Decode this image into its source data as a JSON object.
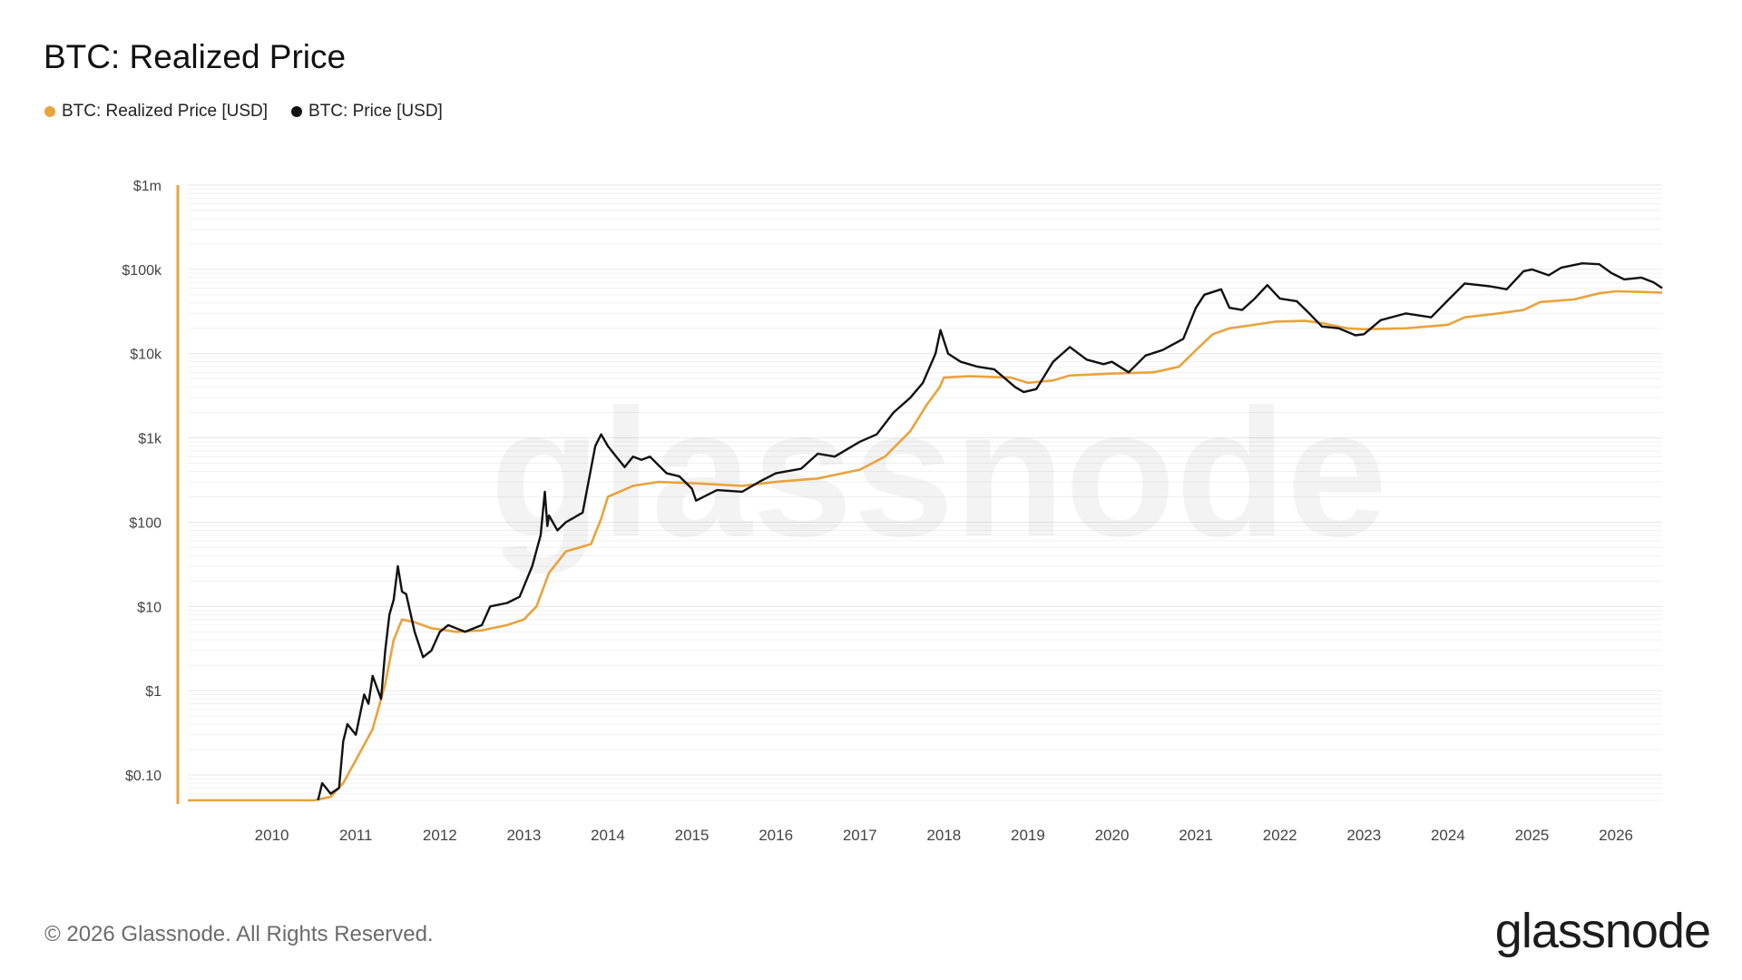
{
  "chart_data": {
    "type": "line",
    "title": "BTC: Realized Price",
    "y_scale": "log",
    "ylim": [
      0.05,
      1000000
    ],
    "y_ticks": [
      "$0.10",
      "$1",
      "$10",
      "$100",
      "$1k",
      "$10k",
      "$100k",
      "$1m"
    ],
    "y_tick_values": [
      0.1,
      1,
      10,
      100,
      1000,
      10000,
      100000,
      1000000
    ],
    "xlim": [
      2009.0,
      2026.55
    ],
    "x_ticks": [
      "2010",
      "2011",
      "2012",
      "2013",
      "2014",
      "2015",
      "2016",
      "2017",
      "2018",
      "2019",
      "2020",
      "2021",
      "2022",
      "2023",
      "2024",
      "2025",
      "2026"
    ],
    "grid": true,
    "legend_position": "top-left",
    "series": [
      {
        "name": "BTC: Realized Price [USD]",
        "color": "#e8a33d",
        "x": [
          2009.0,
          2010.5,
          2010.7,
          2010.85,
          2011.0,
          2011.2,
          2011.35,
          2011.45,
          2011.55,
          2011.7,
          2011.9,
          2012.2,
          2012.5,
          2012.8,
          2013.0,
          2013.15,
          2013.3,
          2013.5,
          2013.8,
          2013.92,
          2014.0,
          2014.3,
          2014.6,
          2015.0,
          2015.3,
          2015.6,
          2016.0,
          2016.5,
          2017.0,
          2017.3,
          2017.6,
          2017.8,
          2017.95,
          2018.0,
          2018.3,
          2018.8,
          2019.0,
          2019.3,
          2019.5,
          2020.0,
          2020.5,
          2020.8,
          2021.0,
          2021.2,
          2021.4,
          2021.7,
          2021.95,
          2022.3,
          2022.5,
          2022.8,
          2023.0,
          2023.5,
          2024.0,
          2024.2,
          2024.6,
          2024.9,
          2025.1,
          2025.5,
          2025.8,
          2026.0,
          2026.3,
          2026.55
        ],
        "y": [
          0.05,
          0.05,
          0.055,
          0.08,
          0.15,
          0.35,
          1.2,
          4.0,
          7.0,
          6.5,
          5.5,
          5.0,
          5.2,
          6.0,
          7.0,
          10,
          25,
          45,
          55,
          110,
          200,
          270,
          300,
          290,
          280,
          270,
          300,
          330,
          420,
          600,
          1200,
          2500,
          4000,
          5200,
          5400,
          5200,
          4500,
          4800,
          5500,
          5800,
          6000,
          7000,
          11000,
          17000,
          20000,
          22000,
          24000,
          24500,
          23000,
          20000,
          19500,
          20000,
          22000,
          27000,
          30000,
          33000,
          41000,
          44000,
          52000,
          55000,
          54000,
          53000
        ]
      },
      {
        "name": "BTC: Price [USD]",
        "color": "#111111",
        "x": [
          2010.55,
          2010.6,
          2010.7,
          2010.8,
          2010.85,
          2010.9,
          2011.0,
          2011.1,
          2011.15,
          2011.2,
          2011.3,
          2011.35,
          2011.4,
          2011.45,
          2011.5,
          2011.55,
          2011.6,
          2011.7,
          2011.8,
          2011.9,
          2012.0,
          2012.1,
          2012.3,
          2012.5,
          2012.6,
          2012.8,
          2012.95,
          2013.1,
          2013.2,
          2013.25,
          2013.28,
          2013.3,
          2013.4,
          2013.5,
          2013.7,
          2013.85,
          2013.92,
          2014.0,
          2014.1,
          2014.2,
          2014.3,
          2014.4,
          2014.5,
          2014.7,
          2014.85,
          2015.0,
          2015.05,
          2015.3,
          2015.6,
          2015.8,
          2016.0,
          2016.3,
          2016.5,
          2016.7,
          2017.0,
          2017.2,
          2017.4,
          2017.6,
          2017.75,
          2017.9,
          2017.96,
          2018.05,
          2018.2,
          2018.4,
          2018.6,
          2018.85,
          2018.95,
          2019.1,
          2019.3,
          2019.5,
          2019.7,
          2019.9,
          2020.0,
          2020.2,
          2020.4,
          2020.6,
          2020.85,
          2021.0,
          2021.1,
          2021.3,
          2021.4,
          2021.55,
          2021.7,
          2021.85,
          2022.0,
          2022.2,
          2022.35,
          2022.5,
          2022.7,
          2022.9,
          2023.0,
          2023.2,
          2023.5,
          2023.8,
          2024.0,
          2024.2,
          2024.5,
          2024.7,
          2024.9,
          2025.0,
          2025.2,
          2025.35,
          2025.6,
          2025.8,
          2025.95,
          2026.1,
          2026.3,
          2026.45,
          2026.55
        ],
        "y": [
          0.05,
          0.08,
          0.06,
          0.07,
          0.25,
          0.4,
          0.3,
          0.9,
          0.7,
          1.5,
          0.8,
          3,
          8,
          12,
          30,
          15,
          14,
          5,
          2.5,
          3,
          5,
          6,
          5,
          6,
          10,
          11,
          13,
          30,
          70,
          230,
          90,
          120,
          80,
          100,
          130,
          800,
          1100,
          800,
          600,
          450,
          600,
          550,
          600,
          380,
          350,
          250,
          180,
          240,
          230,
          300,
          380,
          430,
          650,
          600,
          900,
          1100,
          2000,
          3000,
          4500,
          10000,
          19000,
          10000,
          8000,
          7000,
          6500,
          4000,
          3500,
          3800,
          8000,
          12000,
          8500,
          7500,
          8000,
          6000,
          9500,
          11000,
          15000,
          35000,
          50000,
          58000,
          35000,
          33000,
          45000,
          65000,
          45000,
          42000,
          30000,
          21000,
          20000,
          16500,
          17000,
          25000,
          30000,
          27000,
          43000,
          68000,
          63000,
          58000,
          95000,
          100000,
          85000,
          105000,
          118000,
          115000,
          90000,
          76000,
          80000,
          70000,
          60000
        ]
      }
    ]
  },
  "legend": [
    {
      "label": "BTC: Realized Price [USD]",
      "color": "#e8a33d"
    },
    {
      "label": "BTC: Price [USD]",
      "color": "#111111"
    }
  ],
  "watermark": "glassnode",
  "footer": {
    "copyright": "© 2026 Glassnode. All Rights Reserved.",
    "brand": "glassnode"
  }
}
